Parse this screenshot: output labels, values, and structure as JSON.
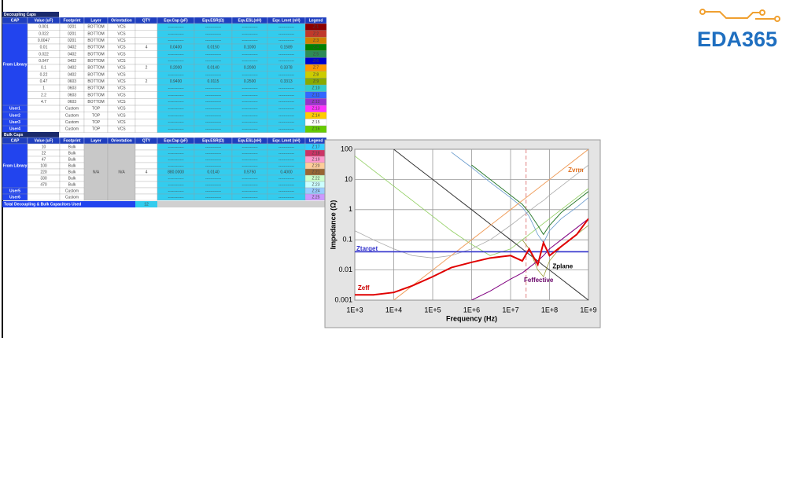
{
  "logo": {
    "text": "EDA365"
  },
  "decoupling": {
    "title": "Decoupling Caps",
    "headers": [
      "CAP",
      "Value (uF)",
      "Footprint",
      "Layer",
      "Orientation",
      "QTY",
      "Eqv.Cap (pF)",
      "Eqv.ESR(Ω)",
      "Eqv.ESL(nH)",
      "Eqv. Lmnt (nH)",
      "Legend"
    ],
    "rows": [
      [
        "From Library",
        "0.001",
        "0201",
        "BOTTOM",
        "VCS",
        null,
        "------------",
        "------------",
        "------------",
        "------------",
        "Z:1"
      ],
      [
        null,
        "0.022",
        "0201",
        "BOTTOM",
        "VCS",
        null,
        "------------",
        "------------",
        "------------",
        "------------",
        "Z:2"
      ],
      [
        null,
        "0.0047",
        "0201",
        "BOTTOM",
        "VCS",
        null,
        "------------",
        "------------",
        "------------",
        "------------",
        "Z:3"
      ],
      [
        null,
        "0.01",
        "0402",
        "BOTTOM",
        "VCS",
        "4",
        "0.0400",
        "0.0150",
        "0.1000",
        "0.1589",
        "Z:4"
      ],
      [
        null,
        "0.022",
        "0402",
        "BOTTOM",
        "VCS",
        null,
        "------------",
        "------------",
        "------------",
        "------------",
        "Z:5"
      ],
      [
        null,
        "0.047",
        "0402",
        "BOTTOM",
        "VCS",
        null,
        "------------",
        "------------",
        "------------",
        "------------",
        "Z:6"
      ],
      [
        null,
        "0.1",
        "0402",
        "BOTTOM",
        "VCS",
        "2",
        "0.2000",
        "0.0140",
        "0.2000",
        "0.3378",
        "Z:7"
      ],
      [
        null,
        "0.22",
        "0402",
        "BOTTOM",
        "VCS",
        null,
        "------------",
        "------------",
        "------------",
        "------------",
        "Z:8"
      ],
      [
        null,
        "0.47",
        "0603",
        "BOTTOM",
        "VCS",
        "2",
        "0.9400",
        "0.0115",
        "0.2500",
        "0.3313",
        "Z:9"
      ],
      [
        null,
        "1",
        "0603",
        "BOTTOM",
        "VCS",
        null,
        "------------",
        "------------",
        "------------",
        "------------",
        "Z:10"
      ],
      [
        null,
        "2.2",
        "0603",
        "BOTTOM",
        "VCS",
        null,
        "------------",
        "------------",
        "------------",
        "------------",
        "Z:11"
      ],
      [
        null,
        "4.7",
        "0603",
        "BOTTOM",
        "VCS",
        null,
        "------------",
        "------------",
        "------------",
        "------------",
        "Z:12"
      ],
      [
        "User1",
        null,
        "Custom",
        "TOP",
        "VCS",
        null,
        "------------",
        "------------",
        "------------",
        "------------",
        "Z:13"
      ],
      [
        "User2",
        null,
        "Custom",
        "TOP",
        "VCS",
        null,
        "------------",
        "------------",
        "------------",
        "------------",
        "Z:14"
      ],
      [
        "User3",
        null,
        "Custom",
        "TOP",
        "VCS",
        null,
        "------------",
        "------------",
        "------------",
        "------------",
        "Z:15"
      ],
      [
        "User4",
        null,
        "Custom",
        "TOP",
        "VCS",
        null,
        "------------",
        "------------",
        "------------",
        "------------",
        "Z:16"
      ]
    ],
    "legend_colors": [
      "#8b0000",
      "#c0392b",
      "#d08000",
      "#008000",
      "#2e8b57",
      "#0000cc",
      "#ff9900",
      "#cccc00",
      "#88aa00",
      "#33cccc",
      "#3366ff",
      "#9933cc",
      "#ff33ff",
      "#ffcc00",
      "#ffffff",
      "#66cc00"
    ]
  },
  "bulk": {
    "title": "Bulk Caps",
    "headers": [
      "CAP",
      "Value (uF)",
      "Footprint",
      "Layer",
      "Orientation",
      "QTY",
      "Eqv.Cap (pF)",
      "Eqv.ESR(Ω)",
      "Eqv.ESL(nH)",
      "Eqv. Lmnt (nH)",
      "Legend"
    ],
    "rows": [
      [
        "From Library",
        "10",
        "Bulk",
        "N/A",
        "N/A",
        null,
        "------------",
        "------------",
        "------------",
        "------------",
        "Z:17"
      ],
      [
        null,
        "22",
        "Bulk",
        null,
        null,
        null,
        "------------",
        "------------",
        "------------",
        "------------",
        "Z:18"
      ],
      [
        null,
        "47",
        "Bulk",
        null,
        null,
        null,
        "------------",
        "------------",
        "------------",
        "------------",
        "Z:19"
      ],
      [
        null,
        "100",
        "Bulk",
        null,
        null,
        null,
        "------------",
        "------------",
        "------------",
        "------------",
        "Z:20"
      ],
      [
        null,
        "220",
        "Bulk",
        null,
        null,
        "4",
        "880.0000",
        "0.0140",
        "0.5750",
        "0.4000",
        "Z:21"
      ],
      [
        null,
        "330",
        "Bulk",
        null,
        null,
        null,
        "------------",
        "------------",
        "------------",
        "------------",
        "Z:22"
      ],
      [
        null,
        "470",
        "Bulk",
        null,
        null,
        null,
        "------------",
        "------------",
        "------------",
        "------------",
        "Z:23"
      ],
      [
        "User5",
        null,
        "Custom",
        null,
        null,
        null,
        "------------",
        "------------",
        "------------",
        "------------",
        "Z:24"
      ],
      [
        "User6",
        null,
        "Custom",
        null,
        null,
        null,
        "------------",
        "------------",
        "------------",
        "------------",
        "Z:25"
      ]
    ],
    "legend_colors": [
      "#33ccff",
      "#cc3366",
      "#ff99cc",
      "#ffcc99",
      "#996633",
      "#ccffcc",
      "#ccffff",
      "#99ccff",
      "#cc99ff"
    ]
  },
  "total": {
    "label": "Total Decoupling & Bulk Capacitors Used",
    "value": "12"
  },
  "chart_data": {
    "type": "line",
    "log_x": true,
    "log_y": true,
    "grid": true,
    "x_label": "Frequency (Hz)",
    "y_label": "Impedance (Ω)",
    "xlim": [
      1000,
      1000000000
    ],
    "xticks": [
      {
        "value": 1000,
        "label": "1E+3"
      },
      {
        "value": 10000,
        "label": "1E+4"
      },
      {
        "value": 100000,
        "label": "1E+5"
      },
      {
        "value": 1000000,
        "label": "1E+6"
      },
      {
        "value": 10000000,
        "label": "1E+7"
      },
      {
        "value": 100000000,
        "label": "1E+8"
      },
      {
        "value": 1000000000,
        "label": "1E+9"
      }
    ],
    "ylim": [
      0.001,
      100
    ],
    "yticks": [
      0.001,
      0.01,
      0.1,
      1,
      10,
      100
    ],
    "vline_x": 25000000,
    "vline_color": "#e08080",
    "x": [
      1000,
      3000,
      10000,
      30000,
      100000,
      300000,
      1000000,
      3000000,
      10000000,
      20000000,
      30000000,
      50000000,
      70000000,
      100000000,
      200000000,
      500000000,
      1000000000
    ],
    "series": [
      {
        "color": "#8fce5f",
        "width": 0.8,
        "values": [
          60,
          20,
          6,
          2,
          0.6,
          0.2,
          0.07,
          0.03,
          0.05,
          0.1,
          0.15,
          0.25,
          0.35,
          0.5,
          1,
          2.5,
          5
        ]
      },
      {
        "color": "#aaaaaa",
        "width": 0.8,
        "values": [
          0.2,
          0.1,
          0.05,
          0.03,
          0.025,
          0.03,
          0.05,
          0.1,
          0.3,
          0.6,
          0.9,
          1.5,
          2,
          3,
          6,
          15,
          30
        ]
      },
      {
        "color": "#6699cc",
        "width": 0.8,
        "values": [
          null,
          null,
          null,
          null,
          null,
          80,
          25,
          8,
          2.5,
          1.2,
          0.6,
          0.15,
          0.08,
          0.2,
          0.5,
          1.2,
          2.5
        ]
      },
      {
        "color": "#2e7d32",
        "width": 1,
        "values": [
          null,
          null,
          null,
          null,
          null,
          null,
          30,
          10,
          3,
          1.5,
          0.8,
          0.3,
          0.15,
          0.3,
          0.8,
          2,
          4
        ]
      },
      {
        "color": "#333333",
        "width": 1,
        "values": [
          null,
          null,
          100,
          33,
          10,
          3.3,
          1,
          0.33,
          0.1,
          0.05,
          0.033,
          0.02,
          0.014,
          0.01,
          0.005,
          0.002,
          0.001
        ]
      },
      {
        "color": "#999933",
        "width": 0.8,
        "values": [
          null,
          null,
          null,
          null,
          null,
          null,
          null,
          null,
          null,
          0.1,
          0.05,
          0.01,
          0.006,
          0.02,
          0.06,
          0.15,
          0.3
        ]
      },
      {
        "color": "#800080",
        "width": 1,
        "values": [
          null,
          null,
          null,
          null,
          null,
          null,
          0.001,
          0.002,
          0.005,
          0.008,
          0.012,
          0.02,
          0.03,
          0.05,
          0.1,
          0.25,
          0.5
        ]
      },
      {
        "color": "#f0a060",
        "width": 1,
        "values": [
          null,
          null,
          0.001,
          0.003,
          0.01,
          0.03,
          0.1,
          0.3,
          1,
          2,
          3,
          5,
          7,
          10,
          20,
          50,
          100
        ]
      },
      {
        "color": "#3333cc",
        "width": 1.6,
        "values": [
          0.04,
          0.04,
          0.04,
          0.04,
          0.04,
          0.04,
          0.04,
          0.04,
          0.04,
          0.04,
          0.04,
          0.04,
          0.04,
          0.04,
          0.04,
          0.04,
          0.04
        ]
      },
      {
        "color": "#e00000",
        "width": 2,
        "values": [
          0.0015,
          0.0015,
          0.0018,
          0.003,
          0.006,
          0.012,
          0.018,
          0.025,
          0.03,
          0.02,
          0.05,
          0.015,
          0.08,
          0.03,
          0.06,
          0.15,
          0.5
        ]
      }
    ],
    "annotations": [
      {
        "text": "Zvrm",
        "x": 300000000,
        "y": 20,
        "color": "#e07020"
      },
      {
        "text": "Ztarget",
        "x": 1100,
        "y": 0.05,
        "color": "#3333cc"
      },
      {
        "text": "Zeff",
        "x": 1200,
        "y": 0.0025,
        "color": "#cc0000"
      },
      {
        "text": "Zplane",
        "x": 120000000,
        "y": 0.013,
        "color": "#000000"
      },
      {
        "text": "Feffective",
        "x": 22000000,
        "y": 0.0045,
        "color": "#660066"
      }
    ]
  }
}
